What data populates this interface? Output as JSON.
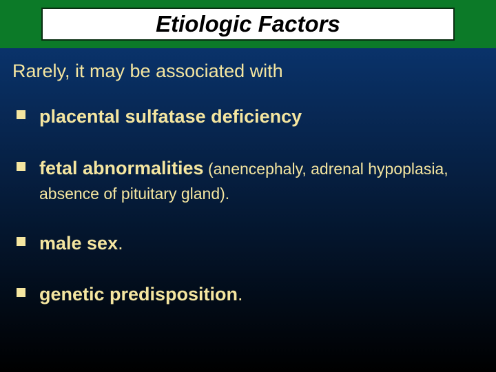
{
  "slide": {
    "background_gradient_top": "#0b3a7a",
    "background_gradient_bottom": "#000000",
    "title_bar_bg": "#0c7a28",
    "title_box_bg": "#ffffff",
    "title_box_border": "#0a2e12",
    "title_box_border_width": 2,
    "title_text": "Etiologic Factors",
    "title_color": "#000000",
    "title_fontsize": 33,
    "intro_text": "Rarely, it may be associated with",
    "intro_color": "#f5e6a0",
    "intro_fontsize": 27,
    "bullet_color": "#f5e6a0",
    "bullet_size": 13,
    "text_color": "#f5e6a0",
    "bullets": [
      {
        "bold_text": "placental sulfatase deficiency",
        "tail_text": "",
        "tail_bold": "",
        "bold_fontsize": 27,
        "tail_fontsize": 23
      },
      {
        "bold_text": "fetal abnormalities",
        "tail_text": " (anencephaly, adrenal hypoplasia, absence of pituitary gland).",
        "bold_fontsize": 27,
        "tail_fontsize": 23
      },
      {
        "bold_text": "male sex",
        "tail_text": ".",
        "bold_fontsize": 27,
        "tail_fontsize": 27
      },
      {
        "bold_text": "genetic predisposition",
        "tail_text": ".",
        "bold_fontsize": 27,
        "tail_fontsize": 27
      }
    ]
  }
}
